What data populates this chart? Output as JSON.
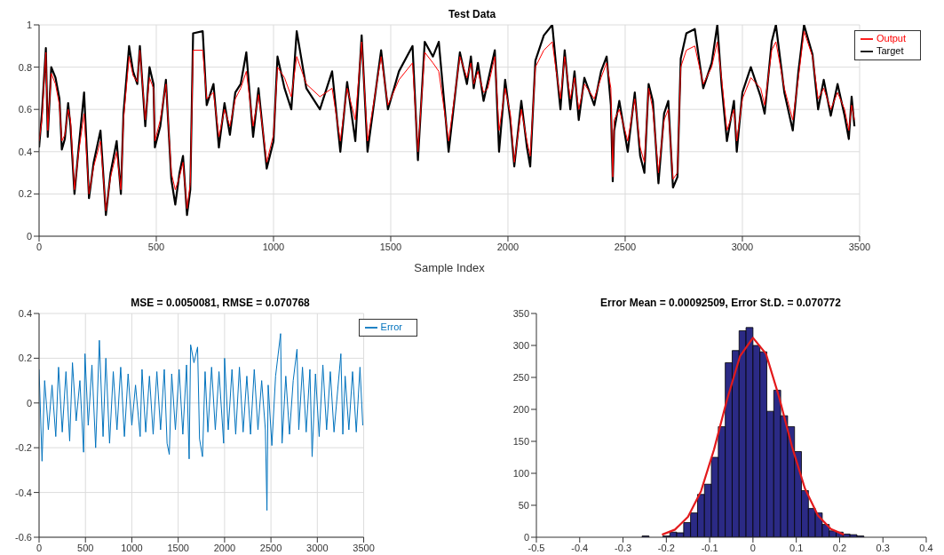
{
  "chart_data": [
    {
      "type": "line",
      "title": "Test Data",
      "xlabel": "Sample Index",
      "xlim": [
        0,
        3500
      ],
      "xticks": [
        0,
        500,
        1000,
        1500,
        2000,
        2500,
        3000,
        3500
      ],
      "ylim": [
        0,
        1
      ],
      "yticks": [
        0,
        0.2,
        0.4,
        0.6,
        0.8,
        1
      ],
      "grid": true,
      "legend": "top right",
      "x": [
        0,
        12,
        29,
        37,
        52,
        70,
        87,
        97,
        110,
        124,
        134,
        151,
        169,
        192,
        213,
        233,
        262,
        285,
        305,
        331,
        349,
        360,
        384,
        401,
        419,
        430,
        453,
        471,
        488,
        494,
        517,
        541,
        564,
        581,
        599,
        614,
        631,
        645,
        657,
        698,
        715,
        744,
        767,
        791,
        814,
        837,
        860,
        884,
        913,
        936,
        971,
        1000,
        1017,
        1047,
        1076,
        1099,
        1140,
        1198,
        1250,
        1285,
        1314,
        1349,
        1376,
        1401,
        1459,
        1488,
        1535,
        1593,
        1616,
        1645,
        1680,
        1705,
        1747,
        1795,
        1825,
        1842,
        1854,
        1872,
        1896,
        1914,
        1944,
        1962,
        1988,
        2010,
        2027,
        2057,
        2081,
        2095,
        2117,
        2153,
        2189,
        2206,
        2224,
        2242,
        2266,
        2284,
        2302,
        2326,
        2368,
        2397,
        2421,
        2439,
        2447,
        2453,
        2475,
        2511,
        2541,
        2564,
        2582,
        2600,
        2618,
        2642,
        2666,
        2684,
        2704,
        2723,
        2737,
        2761,
        2797,
        2833,
        2869,
        2893,
        2911,
        2934,
        2964,
        2976,
        3000,
        3036,
        3078,
        3095,
        3125,
        3143,
        3179,
        3215,
        3239,
        3263,
        3299,
        3323,
        3347,
        3377,
        3406,
        3436,
        3454,
        3466,
        3478
      ],
      "series": [
        {
          "name": "Target",
          "color": "#000000",
          "values": [
            0.42,
            0.58,
            0.89,
            0.47,
            0.8,
            0.75,
            0.65,
            0.41,
            0.46,
            0.63,
            0.52,
            0.2,
            0.42,
            0.68,
            0.18,
            0.35,
            0.5,
            0.1,
            0.3,
            0.45,
            0.2,
            0.58,
            0.9,
            0.78,
            0.72,
            0.9,
            0.52,
            0.8,
            0.72,
            0.42,
            0.52,
            0.74,
            0.27,
            0.15,
            0.3,
            0.38,
            0.1,
            0.22,
            0.96,
            0.97,
            0.62,
            0.72,
            0.42,
            0.63,
            0.48,
            0.68,
            0.72,
            0.87,
            0.47,
            0.7,
            0.32,
            0.45,
            0.85,
            0.7,
            0.6,
            0.97,
            0.7,
            0.6,
            0.78,
            0.4,
            0.73,
            0.45,
            0.95,
            0.4,
            0.88,
            0.6,
            0.78,
            0.9,
            0.36,
            0.92,
            0.85,
            0.92,
            0.4,
            0.87,
            0.72,
            0.85,
            0.7,
            0.82,
            0.64,
            0.73,
            0.88,
            0.4,
            0.74,
            0.55,
            0.33,
            0.64,
            0.42,
            0.33,
            0.83,
            0.95,
            1.0,
            0.8,
            0.6,
            0.88,
            0.6,
            0.78,
            0.55,
            0.75,
            0.62,
            0.78,
            0.85,
            0.62,
            0.26,
            0.5,
            0.64,
            0.4,
            0.68,
            0.38,
            0.3,
            0.72,
            0.64,
            0.25,
            0.58,
            0.64,
            0.23,
            0.28,
            0.84,
            0.96,
            0.98,
            0.7,
            0.82,
            1.0,
            0.72,
            0.45,
            0.64,
            0.4,
            0.68,
            0.8,
            0.66,
            0.58,
            0.92,
            1.0,
            0.68,
            0.5,
            0.78,
            1.0,
            0.86,
            0.6,
            0.74,
            0.57,
            0.72,
            0.57,
            0.46,
            0.66,
            0.52
          ]
        },
        {
          "name": "Output",
          "color": "#ff0000",
          "values": [
            0.45,
            0.55,
            0.87,
            0.5,
            0.77,
            0.72,
            0.62,
            0.45,
            0.48,
            0.6,
            0.55,
            0.22,
            0.4,
            0.58,
            0.2,
            0.33,
            0.45,
            0.12,
            0.28,
            0.4,
            0.22,
            0.55,
            0.85,
            0.76,
            0.73,
            0.88,
            0.55,
            0.75,
            0.7,
            0.45,
            0.55,
            0.72,
            0.3,
            0.22,
            0.28,
            0.35,
            0.13,
            0.25,
            0.88,
            0.88,
            0.65,
            0.68,
            0.47,
            0.6,
            0.52,
            0.65,
            0.7,
            0.78,
            0.52,
            0.67,
            0.35,
            0.48,
            0.8,
            0.75,
            0.66,
            0.85,
            0.72,
            0.66,
            0.7,
            0.45,
            0.7,
            0.55,
            0.92,
            0.45,
            0.85,
            0.62,
            0.74,
            0.82,
            0.4,
            0.87,
            0.82,
            0.78,
            0.45,
            0.85,
            0.75,
            0.82,
            0.72,
            0.78,
            0.68,
            0.7,
            0.85,
            0.5,
            0.7,
            0.58,
            0.35,
            0.6,
            0.45,
            0.38,
            0.8,
            0.88,
            0.92,
            0.78,
            0.65,
            0.85,
            0.65,
            0.75,
            0.6,
            0.72,
            0.65,
            0.75,
            0.82,
            0.7,
            0.28,
            0.55,
            0.6,
            0.45,
            0.65,
            0.42,
            0.35,
            0.7,
            0.6,
            0.3,
            0.55,
            0.6,
            0.27,
            0.3,
            0.8,
            0.88,
            0.9,
            0.72,
            0.8,
            0.92,
            0.75,
            0.5,
            0.6,
            0.45,
            0.65,
            0.75,
            0.7,
            0.62,
            0.88,
            0.92,
            0.7,
            0.55,
            0.75,
            0.97,
            0.85,
            0.65,
            0.7,
            0.6,
            0.68,
            0.6,
            0.5,
            0.62,
            0.55
          ]
        }
      ]
    },
    {
      "type": "line",
      "title": "MSE = 0.0050081, RMSE = 0.070768",
      "xlim": [
        0,
        3500
      ],
      "xticks": [
        0,
        500,
        1000,
        1500,
        2000,
        2500,
        3000,
        3500
      ],
      "ylim": [
        -0.6,
        0.4
      ],
      "yticks": [
        -0.6,
        -0.4,
        -0.2,
        0,
        0.2,
        0.4
      ],
      "grid": true,
      "legend": "top right",
      "x": [
        0,
        32,
        60,
        100,
        140,
        180,
        210,
        250,
        290,
        330,
        360,
        400,
        440,
        480,
        495,
        530,
        570,
        610,
        650,
        690,
        720,
        760,
        800,
        840,
        880,
        920,
        960,
        1000,
        1040,
        1090,
        1110,
        1150,
        1190,
        1230,
        1270,
        1310,
        1350,
        1380,
        1404,
        1430,
        1470,
        1510,
        1550,
        1590,
        1618,
        1634,
        1670,
        1709,
        1730,
        1762,
        1790,
        1820,
        1860,
        1900,
        1940,
        1990,
        2000,
        2040,
        2080,
        2120,
        2160,
        2200,
        2240,
        2280,
        2320,
        2360,
        2400,
        2440,
        2457,
        2470,
        2510,
        2550,
        2604,
        2620,
        2660,
        2700,
        2740,
        2781,
        2800,
        2840,
        2880,
        2920,
        2944,
        2980,
        3020,
        3060,
        3100,
        3140,
        3180,
        3254,
        3275,
        3300,
        3340,
        3380,
        3420,
        3460,
        3490
      ],
      "series": [
        {
          "name": "Error",
          "color": "#0072bd",
          "values": [
            0.15,
            -0.26,
            0.1,
            -0.12,
            0.08,
            -0.15,
            0.16,
            -0.13,
            0.14,
            -0.17,
            0.18,
            -0.08,
            0.1,
            -0.22,
            0.22,
            -0.1,
            0.17,
            -0.2,
            0.28,
            -0.15,
            0.2,
            -0.18,
            0.14,
            -0.12,
            0.16,
            -0.15,
            0.13,
            -0.1,
            0.08,
            -0.15,
            0.15,
            -0.13,
            0.12,
            -0.14,
            0.14,
            -0.12,
            0.15,
            -0.18,
            -0.23,
            0.13,
            -0.12,
            0.15,
            -0.14,
            0.17,
            -0.25,
            0.26,
            0.18,
            0.25,
            -0.16,
            -0.24,
            0.14,
            -0.13,
            0.16,
            -0.12,
            0.14,
            -0.18,
            0.2,
            -0.12,
            0.15,
            -0.14,
            0.16,
            -0.13,
            0.12,
            -0.14,
            0.15,
            -0.12,
            0.1,
            -0.12,
            -0.48,
            0.08,
            -0.19,
            0.12,
            0.31,
            -0.18,
            0.12,
            -0.14,
            0.1,
            0.24,
            -0.12,
            0.16,
            -0.13,
            0.15,
            -0.24,
            0.13,
            -0.15,
            0.17,
            -0.12,
            0.14,
            -0.13,
            0.22,
            -0.14,
            0.12,
            -0.12,
            0.14,
            -0.13,
            0.16,
            -0.1
          ]
        }
      ]
    },
    {
      "type": "histogram",
      "title": "Error Mean = 0.00092509, Error St.D. = 0.070772",
      "xlim": [
        -0.5,
        0.4
      ],
      "xticks": [
        -0.5,
        -0.4,
        -0.3,
        -0.2,
        -0.1,
        0,
        0.1,
        0.2,
        0.3,
        0.4
      ],
      "ylim": [
        0,
        350
      ],
      "yticks": [
        0,
        50,
        100,
        150,
        200,
        250,
        300,
        350
      ],
      "color": "#2b2a85",
      "bins": [
        -0.256,
        -0.24,
        -0.224,
        -0.208,
        -0.192,
        -0.176,
        -0.16,
        -0.144,
        -0.128,
        -0.112,
        -0.096,
        -0.08,
        -0.064,
        -0.048,
        -0.032,
        -0.016,
        0,
        0.016,
        0.032,
        0.048,
        0.064,
        0.08,
        0.096,
        0.112,
        0.128,
        0.144,
        0.16,
        0.176,
        0.192,
        0.208,
        0.224,
        0.24,
        0.256
      ],
      "values": [
        2,
        0,
        0,
        2,
        8,
        7,
        23,
        38,
        67,
        83,
        125,
        173,
        273,
        292,
        323,
        328,
        300,
        290,
        197,
        230,
        190,
        173,
        134,
        73,
        45,
        38,
        20,
        10,
        8,
        5,
        4,
        2
      ],
      "series": [
        {
          "type": "line",
          "color": "#e31a1c",
          "x": [
            -0.21,
            -0.18,
            -0.15,
            -0.12,
            -0.09,
            -0.06,
            -0.03,
            0,
            0.03,
            0.06,
            0.09,
            0.12,
            0.15,
            0.18,
            0.21
          ],
          "values": [
            4,
            12,
            32,
            72,
            137,
            215,
            283,
            312,
            287,
            220,
            142,
            76,
            34,
            13,
            4
          ]
        }
      ]
    }
  ]
}
